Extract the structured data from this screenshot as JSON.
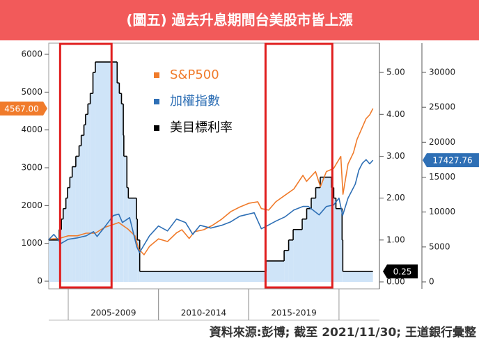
{
  "chart_data": {
    "type": "line",
    "title": "(圖五) 過去升息期間台美股市皆上漲",
    "source": "資料來源:彭博; 截至 2021/11/30; 王道銀行彙整",
    "xlim": [
      2003.92,
      2022.24
    ],
    "x_groups": [
      {
        "label": "2005-2009",
        "start": 2005,
        "end": 2010
      },
      {
        "label": "2010-2014",
        "start": 2010,
        "end": 2015
      },
      {
        "label": "2015-2019",
        "start": 2015,
        "end": 2020
      }
    ],
    "highlights": [
      {
        "start": 2004.55,
        "end": 2007.4
      },
      {
        "start": 2015.93,
        "end": 2019.63
      }
    ],
    "ylim": [
      -202,
      6295
    ],
    "yticks": [
      0,
      1000,
      2000,
      3000,
      4000,
      5000,
      6000
    ],
    "y2lim": [
      -0.166,
      5.7
    ],
    "y2ticks": [
      {
        "value": 0,
        "label": "0.00"
      },
      {
        "value": 1,
        "label": "1.00"
      },
      {
        "value": 2,
        "label": "2.00"
      },
      {
        "value": 3,
        "label": "3.00"
      },
      {
        "value": 4,
        "label": "4.00"
      },
      {
        "value": 5,
        "label": "5.00"
      }
    ],
    "y3lim": [
      -997,
      34186
    ],
    "y3ticks": [
      0,
      5000,
      10000,
      15000,
      20000,
      25000,
      30000
    ],
    "series": [
      {
        "name": "S&P500",
        "color": "#f07b2b",
        "axis": "y",
        "end_label": "4567.00",
        "x": [
          2003.9,
          2004.5,
          2005,
          2005.5,
          2006,
          2006.5,
          2007,
          2007.5,
          2007.8,
          2008.3,
          2008.7,
          2008.9,
          2009.2,
          2009.5,
          2010,
          2010.5,
          2011,
          2011.3,
          2011.7,
          2012,
          2012.5,
          2013,
          2013.5,
          2014,
          2014.5,
          2015,
          2015.5,
          2015.7,
          2016.1,
          2016.5,
          2017,
          2017.5,
          2018,
          2018.2,
          2018.7,
          2018.97,
          2019.3,
          2019.7,
          2020.1,
          2020.22,
          2020.5,
          2020.8,
          2021,
          2021.5,
          2021.7,
          2021.88
        ],
        "values": [
          1110,
          1130,
          1200,
          1200,
          1270,
          1270,
          1420,
          1500,
          1550,
          1380,
          1200,
          850,
          700,
          920,
          1120,
          1050,
          1280,
          1360,
          1130,
          1310,
          1360,
          1480,
          1640,
          1840,
          1960,
          2060,
          2100,
          1920,
          1880,
          2100,
          2270,
          2440,
          2800,
          2640,
          2900,
          2500,
          2900,
          2980,
          3300,
          2300,
          3100,
          3400,
          3750,
          4300,
          4400,
          4567
        ]
      },
      {
        "name": "加權指數",
        "color": "#2e6fb5",
        "axis": "y3",
        "end_label": "17427.76",
        "x": [
          2003.9,
          2004.2,
          2004.6,
          2005,
          2005.5,
          2006,
          2006.4,
          2006.6,
          2007,
          2007.5,
          2007.8,
          2008,
          2008.4,
          2008.8,
          2008.95,
          2009.5,
          2010,
          2010.5,
          2011,
          2011.5,
          2011.9,
          2012.3,
          2012.9,
          2013.5,
          2014,
          2014.5,
          2015.3,
          2015.7,
          2016,
          2016.5,
          2017,
          2017.5,
          2018,
          2018.3,
          2018.9,
          2019.3,
          2019.7,
          2020,
          2020.2,
          2020.5,
          2020.9,
          2021.1,
          2021.3,
          2021.5,
          2021.7,
          2021.88
        ],
        "values": [
          6000,
          6800,
          5500,
          6100,
          6300,
          6600,
          7200,
          6500,
          7800,
          9500,
          9700,
          8500,
          9200,
          5000,
          4200,
          6600,
          8000,
          7300,
          9000,
          8500,
          6800,
          8100,
          7700,
          8100,
          8600,
          9400,
          9900,
          7600,
          8000,
          8700,
          9300,
          10300,
          10800,
          10800,
          9600,
          10800,
          11000,
          12000,
          9500,
          12000,
          14000,
          16000,
          17000,
          17500,
          16900,
          17427.76
        ]
      },
      {
        "name": "美目標利率",
        "color": "#000000",
        "fill": "#cfe4f8",
        "axis": "y2",
        "end_label": "0.25",
        "x": [
          2003.92,
          2004.5,
          2004.62,
          2004.72,
          2004.87,
          2004.96,
          2005.09,
          2005.22,
          2005.42,
          2005.6,
          2005.72,
          2005.87,
          2005.96,
          2006.09,
          2006.22,
          2006.37,
          2006.5,
          2007.71,
          2007.83,
          2007.95,
          2008.05,
          2008.08,
          2008.25,
          2008.33,
          2008.78,
          2008.83,
          2008.96,
          2015.96,
          2016.96,
          2017.21,
          2017.46,
          2017.96,
          2018.21,
          2018.46,
          2018.71,
          2018.96,
          2019.58,
          2019.71,
          2019.83,
          2020.17,
          2020.21,
          2021.88
        ],
        "values": [
          1.0,
          1.25,
          1.5,
          1.75,
          2.0,
          2.25,
          2.5,
          2.75,
          3.0,
          3.25,
          3.5,
          3.75,
          4.0,
          4.25,
          4.5,
          5.0,
          5.25,
          4.75,
          4.5,
          4.25,
          3.5,
          3.0,
          2.25,
          2.0,
          1.5,
          1.0,
          0.25,
          0.5,
          0.75,
          1.0,
          1.25,
          1.5,
          1.75,
          2.0,
          2.25,
          2.5,
          2.25,
          2.0,
          1.75,
          1.0,
          0.25,
          0.25
        ]
      }
    ]
  }
}
